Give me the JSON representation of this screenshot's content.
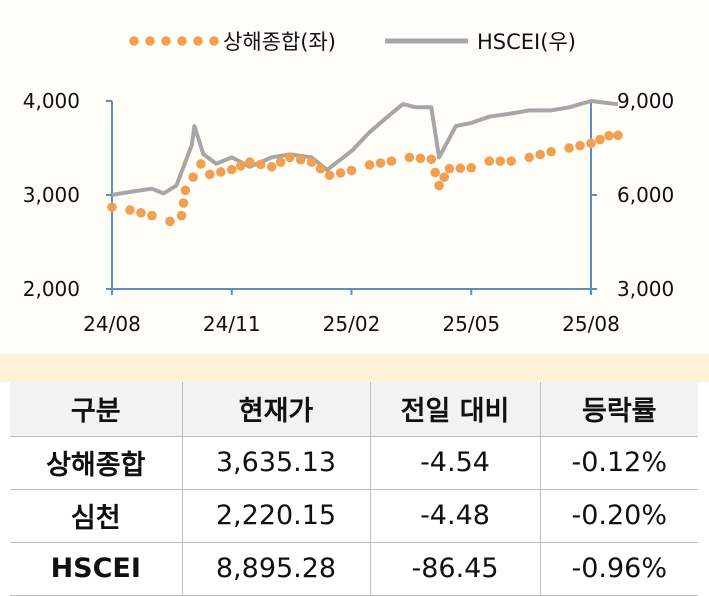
{
  "chart_data": {
    "type": "line",
    "legend": [
      {
        "name": "상해종합(좌)",
        "style": "dotted",
        "color": "#f0a050"
      },
      {
        "name": "HSCEI(우)",
        "style": "line",
        "color": "#a6a6a6"
      }
    ],
    "legend_position": "top-center",
    "x_ticks": [
      "24/08",
      "24/11",
      "25/02",
      "25/05",
      "25/08"
    ],
    "x_range": [
      "2024-08",
      "2025-08"
    ],
    "y_left": {
      "ticks": [
        "2,000",
        "3,000",
        "4,000"
      ],
      "range": [
        2000,
        4000
      ]
    },
    "y_right": {
      "ticks": [
        "3,000",
        "6,000",
        "9,000"
      ],
      "range": [
        3000,
        9000
      ]
    },
    "axis_color": "#5a8ec4",
    "grid": false,
    "series": [
      {
        "name": "상해종합(좌)",
        "axis": "left",
        "color": "#f0a050",
        "x": [
          "2024-08-01",
          "2024-08-15",
          "2024-09-01",
          "2024-09-15",
          "2024-09-24",
          "2024-09-27",
          "2024-10-08",
          "2024-10-15",
          "2024-11-01",
          "2024-11-15",
          "2024-12-01",
          "2024-12-15",
          "2025-01-01",
          "2025-01-15",
          "2025-02-01",
          "2025-02-15",
          "2025-03-01",
          "2025-03-15",
          "2025-04-01",
          "2025-04-07",
          "2025-04-15",
          "2025-05-01",
          "2025-05-15",
          "2025-06-01",
          "2025-06-15",
          "2025-07-01",
          "2025-07-15",
          "2025-08-01",
          "2025-08-15",
          "2025-08-22"
        ],
        "values": [
          2870,
          2840,
          2780,
          2720,
          2780,
          3050,
          3330,
          3220,
          3270,
          3350,
          3300,
          3400,
          3350,
          3210,
          3260,
          3320,
          3360,
          3400,
          3380,
          3100,
          3280,
          3290,
          3360,
          3360,
          3400,
          3460,
          3500,
          3550,
          3630,
          3635
        ]
      },
      {
        "name": "HSCEI(우)",
        "axis": "right",
        "color": "#a6a6a6",
        "x": [
          "2024-08-01",
          "2024-08-15",
          "2024-09-01",
          "2024-09-10",
          "2024-09-20",
          "2024-10-01",
          "2024-10-03",
          "2024-10-10",
          "2024-10-20",
          "2024-11-01",
          "2024-11-15",
          "2024-12-01",
          "2024-12-15",
          "2025-01-01",
          "2025-01-13",
          "2025-02-01",
          "2025-02-15",
          "2025-03-01",
          "2025-03-10",
          "2025-03-20",
          "2025-04-01",
          "2025-04-07",
          "2025-04-20",
          "2025-05-01",
          "2025-05-15",
          "2025-06-01",
          "2025-06-15",
          "2025-07-01",
          "2025-07-15",
          "2025-08-01",
          "2025-08-22"
        ],
        "values": [
          6000,
          6100,
          6200,
          6050,
          6300,
          7600,
          8200,
          7300,
          7000,
          7200,
          6900,
          7200,
          7300,
          7200,
          6800,
          7400,
          8000,
          8600,
          8900,
          8800,
          8800,
          7200,
          8200,
          8300,
          8500,
          8600,
          8700,
          8700,
          8800,
          9000,
          8895
        ]
      }
    ]
  },
  "table": {
    "headers": [
      "구분",
      "현재가",
      "전일 대비",
      "등락률"
    ],
    "rows": [
      [
        "상해종합",
        "3,635.13",
        "-4.54",
        "-0.12%"
      ],
      [
        "심천",
        "2,220.15",
        "-4.48",
        "-0.20%"
      ],
      [
        "HSCEI",
        "8,895.28",
        "-86.45",
        "-0.96%"
      ]
    ]
  }
}
